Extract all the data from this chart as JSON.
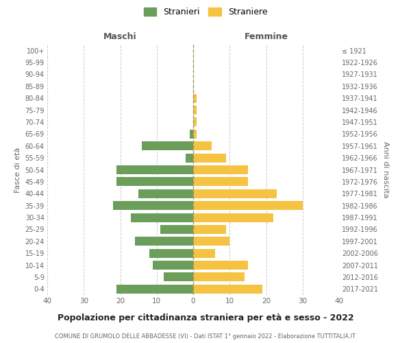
{
  "age_groups": [
    "0-4",
    "5-9",
    "10-14",
    "15-19",
    "20-24",
    "25-29",
    "30-34",
    "35-39",
    "40-44",
    "45-49",
    "50-54",
    "55-59",
    "60-64",
    "65-69",
    "70-74",
    "75-79",
    "80-84",
    "85-89",
    "90-94",
    "95-99",
    "100+"
  ],
  "birth_years": [
    "2017-2021",
    "2012-2016",
    "2007-2011",
    "2002-2006",
    "1997-2001",
    "1992-1996",
    "1987-1991",
    "1982-1986",
    "1977-1981",
    "1972-1976",
    "1967-1971",
    "1962-1966",
    "1957-1961",
    "1952-1956",
    "1947-1951",
    "1942-1946",
    "1937-1941",
    "1932-1936",
    "1927-1931",
    "1922-1926",
    "≤ 1921"
  ],
  "maschi": [
    21,
    8,
    11,
    12,
    16,
    9,
    17,
    22,
    15,
    21,
    21,
    2,
    14,
    1,
    0,
    0,
    0,
    0,
    0,
    0,
    0
  ],
  "femmine": [
    19,
    14,
    15,
    6,
    10,
    9,
    22,
    30,
    23,
    15,
    15,
    9,
    5,
    1,
    1,
    1,
    1,
    0,
    0,
    0,
    0
  ],
  "color_maschi": "#6a9e5a",
  "color_femmine": "#f5c242",
  "title": "Popolazione per cittadinanza straniera per età e sesso - 2022",
  "subtitle": "COMUNE DI GRUMOLO DELLE ABBADESSE (VI) - Dati ISTAT 1° gennaio 2022 - Elaborazione TUTTITALIA.IT",
  "ylabel_left": "Fasce di età",
  "ylabel_right": "Anni di nascita",
  "xlabel_maschi": "Maschi",
  "xlabel_femmine": "Femmine",
  "legend_maschi": "Stranieri",
  "legend_femmine": "Straniere",
  "xlim": 40,
  "background_color": "#ffffff",
  "grid_color": "#cccccc"
}
